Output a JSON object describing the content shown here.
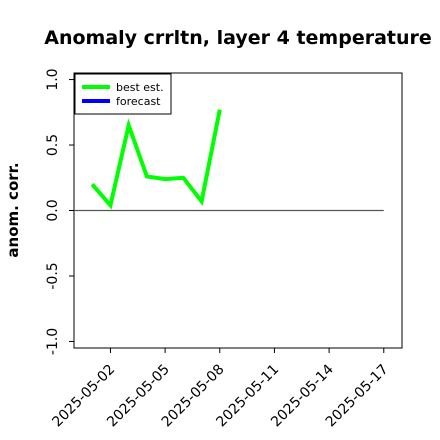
{
  "chart_data": {
    "type": "line",
    "title": "Anomaly crrltn, layer 4 temperature",
    "xlabel": "",
    "ylabel": "anom. corr.",
    "ylim": [
      -1.05,
      1.05
    ],
    "xlim": [
      "2025-04-30",
      "2025-05-18"
    ],
    "yticks": [
      -1.0,
      -0.5,
      0.0,
      0.5,
      1.0
    ],
    "ytick_labels": [
      "-1.0",
      "-0.5",
      "0.0",
      "0.5",
      "1.0"
    ],
    "xticks": [
      "2025-05-02",
      "2025-05-05",
      "2025-05-08",
      "2025-05-11",
      "2025-05-14",
      "2025-05-17"
    ],
    "highlighted_xtick": "2025-05-08",
    "highlight_color": "#228B22",
    "legend_position": "upper-left",
    "reference_line": {
      "y": 0.0,
      "x_start": "2025-04-30",
      "x_end": "2025-05-17",
      "color": "#555555"
    },
    "series": [
      {
        "name": "best est.",
        "color": "#00ff00",
        "x": [
          "2025-05-01",
          "2025-05-02",
          "2025-05-03",
          "2025-05-04",
          "2025-05-05",
          "2025-05-06",
          "2025-05-07",
          "2025-05-08"
        ],
        "values": [
          0.2,
          0.04,
          0.65,
          0.26,
          0.24,
          0.25,
          0.07,
          0.77
        ]
      },
      {
        "name": "forecast",
        "color": "#0000ff",
        "x": [],
        "values": []
      }
    ]
  }
}
